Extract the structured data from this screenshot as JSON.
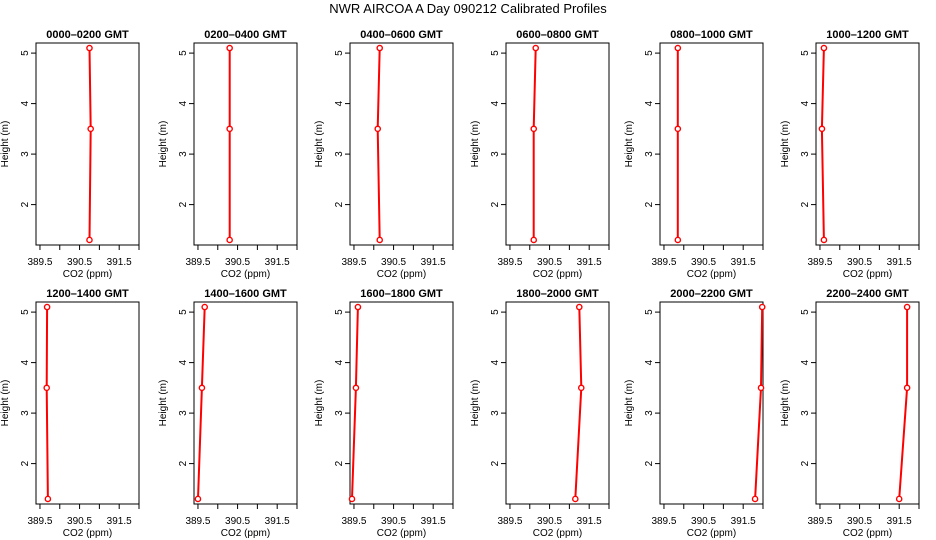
{
  "page": {
    "title": "NWR AIRCOA A  Day 090212  Calibrated Profiles"
  },
  "colors": {
    "series": "#ff0000",
    "axis": "#000000"
  },
  "shared_axes": {
    "xlabel": "CO2 (ppm)",
    "ylabel": "Height (m)",
    "xlim": [
      389.4,
      392.0
    ],
    "ylim": [
      1.2,
      5.2
    ],
    "xticks": [
      389.5,
      390,
      390.5,
      391,
      391.5,
      392
    ],
    "xtick_labels": [
      "389.5",
      "",
      "390.5",
      "",
      "391.5",
      ""
    ],
    "yticks": [
      2,
      3,
      4,
      5
    ]
  },
  "chart_data": [
    {
      "type": "line",
      "title": "0000–0200 GMT",
      "x": [
        390.75,
        390.78,
        390.75
      ],
      "y": [
        1.3,
        3.5,
        5.1
      ]
    },
    {
      "type": "line",
      "title": "0200–0400 GMT",
      "x": [
        390.3,
        390.3,
        390.3
      ],
      "y": [
        1.3,
        3.5,
        5.1
      ]
    },
    {
      "type": "line",
      "title": "0400–0600 GMT",
      "x": [
        390.15,
        390.1,
        390.15
      ],
      "y": [
        1.3,
        3.5,
        5.1
      ]
    },
    {
      "type": "line",
      "title": "0600–0800 GMT",
      "x": [
        390.1,
        390.1,
        390.15
      ],
      "y": [
        1.3,
        3.5,
        5.1
      ]
    },
    {
      "type": "line",
      "title": "0800–1000 GMT",
      "x": [
        389.85,
        389.85,
        389.85
      ],
      "y": [
        1.3,
        3.5,
        5.1
      ]
    },
    {
      "type": "line",
      "title": "1000–1200 GMT",
      "x": [
        389.6,
        389.55,
        389.6
      ],
      "y": [
        1.3,
        3.5,
        5.1
      ]
    },
    {
      "type": "line",
      "title": "1200–1400 GMT",
      "x": [
        389.7,
        389.67,
        389.68
      ],
      "y": [
        1.3,
        3.5,
        5.1
      ]
    },
    {
      "type": "line",
      "title": "1400–1600 GMT",
      "x": [
        389.5,
        389.6,
        389.67
      ],
      "y": [
        1.3,
        3.5,
        5.1
      ]
    },
    {
      "type": "line",
      "title": "1600–1800 GMT",
      "x": [
        389.45,
        389.55,
        389.6
      ],
      "y": [
        1.3,
        3.5,
        5.1
      ]
    },
    {
      "type": "line",
      "title": "1800–2000 GMT",
      "x": [
        391.15,
        391.3,
        391.25
      ],
      "y": [
        1.3,
        3.5,
        5.1
      ]
    },
    {
      "type": "line",
      "title": "2000–2200 GMT",
      "x": [
        391.8,
        391.95,
        391.98
      ],
      "y": [
        1.3,
        3.5,
        5.1
      ]
    },
    {
      "type": "line",
      "title": "2200–2400 GMT",
      "x": [
        391.5,
        391.7,
        391.7
      ],
      "y": [
        1.3,
        3.5,
        5.1
      ]
    }
  ]
}
